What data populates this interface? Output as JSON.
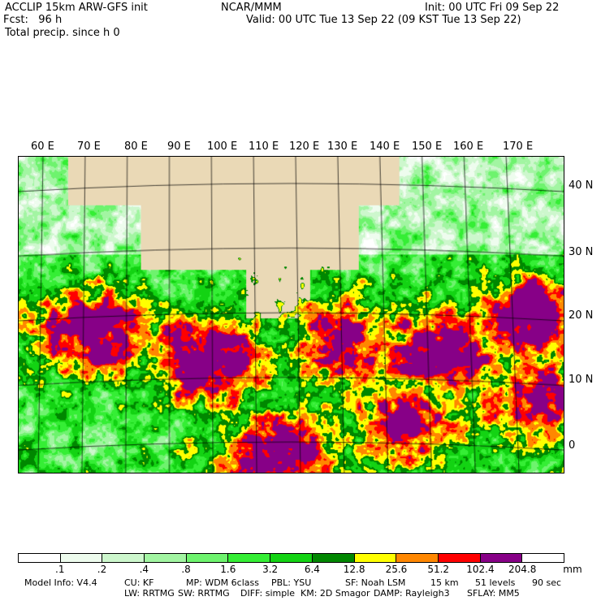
{
  "header": {
    "model": "ACCLIP 15km ARW-GFS init",
    "org": "NCAR/MMM",
    "init": "Init: 00 UTC Fri 09 Sep 22",
    "fcst": "Fcst:   96 h",
    "valid": "Valid: 00 UTC Tue 13 Sep 22 (09 KST Tue 13 Sep 22)",
    "field": "Total precip. since h 0"
  },
  "map": {
    "lon_labels": [
      "60 E",
      "70 E",
      "80 E",
      "90 E",
      "100 E",
      "110 E",
      "120 E",
      "130 E",
      "140 E",
      "150 E",
      "160 E",
      "170 E"
    ],
    "lat_labels": [
      "40 N",
      "30 N",
      "20 N",
      "10 N",
      "0"
    ],
    "land_color": "#ead9b6",
    "ocean_color": "#ffffff"
  },
  "colorbar": {
    "colors": [
      "#ffffff",
      "#eefcee",
      "#cdf7cd",
      "#a2f5a2",
      "#6ef36e",
      "#35ee35",
      "#13d313",
      "#008700",
      "#ffff00",
      "#ff8700",
      "#ff0000",
      "#870087",
      "#ffffff"
    ],
    "labels": [
      ".1",
      ".2",
      ".4",
      ".8",
      "1.6",
      "3.2",
      "6.4",
      "12.8",
      "25.6",
      "51.2",
      "102.4",
      "204.8"
    ],
    "unit": "mm"
  },
  "footer": {
    "model_info": "Model Info: V4.4",
    "cu": "CU: KF",
    "mp": "MP: WDM 6class",
    "pbl": "PBL: YSU",
    "sf": "SF: Noah LSM",
    "res": "15 km",
    "levels": "51 levels",
    "dt": "90 sec",
    "lw": "LW: RRTMG",
    "sw": "SW: RRTMG",
    "diff": "DIFF: simple",
    "km": "KM: 2D Smagor",
    "damp": "DAMP: Rayleigh3",
    "sflay": "SFLAY: MM5"
  }
}
